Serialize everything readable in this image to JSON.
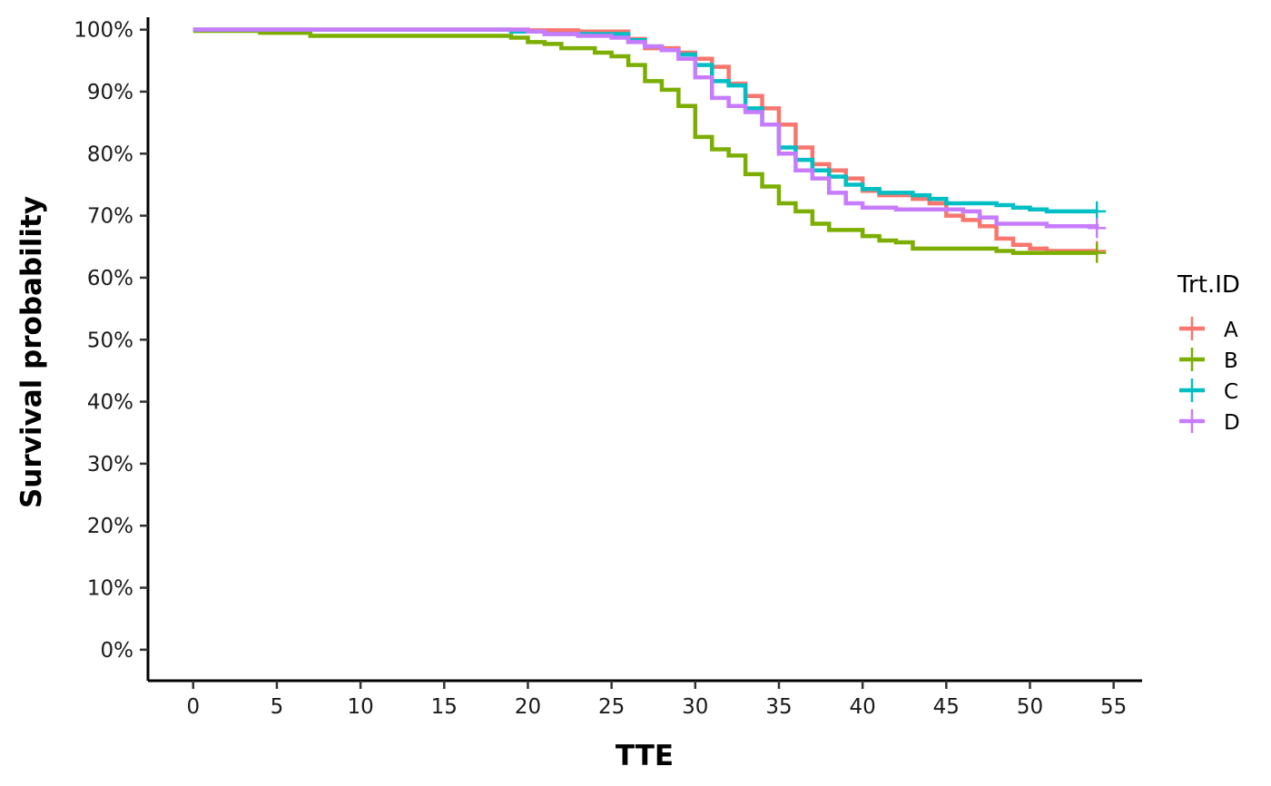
{
  "chart_data": {
    "type": "line",
    "subtype": "kaplan-meier-step",
    "title": "",
    "xlabel": "TTE",
    "ylabel": "Survival probability",
    "xlim": [
      -2.7,
      56.7
    ],
    "ylim": [
      -0.05,
      1.02
    ],
    "x_ticks": [
      0,
      5,
      10,
      15,
      20,
      25,
      30,
      35,
      40,
      45,
      50,
      55
    ],
    "x_tick_labels": [
      "0",
      "5",
      "10",
      "15",
      "20",
      "25",
      "30",
      "35",
      "40",
      "45",
      "50",
      "55"
    ],
    "y_ticks": [
      0,
      0.1,
      0.2,
      0.3,
      0.4,
      0.5,
      0.6,
      0.7,
      0.8,
      0.9,
      1.0
    ],
    "y_tick_labels": [
      "0%",
      "10%",
      "20%",
      "30%",
      "40%",
      "50%",
      "60%",
      "70%",
      "80%",
      "90%",
      "100%"
    ],
    "grid": false,
    "legend": {
      "title": "Trt.ID",
      "position": "right",
      "labels": [
        "A",
        "B",
        "C",
        "D"
      ]
    },
    "series": [
      {
        "name": "A",
        "color": "#F8766D",
        "x": [
          0,
          20,
          23,
          26,
          27,
          29,
          30,
          31,
          32,
          33,
          34,
          35,
          36,
          37,
          38,
          39,
          40,
          41,
          42,
          43,
          44,
          45,
          46,
          47,
          48,
          49,
          50,
          51,
          54
        ],
        "y": [
          1.0,
          0.999,
          0.997,
          0.985,
          0.97,
          0.963,
          0.953,
          0.94,
          0.913,
          0.893,
          0.873,
          0.847,
          0.81,
          0.783,
          0.773,
          0.76,
          0.74,
          0.733,
          0.733,
          0.727,
          0.72,
          0.7,
          0.693,
          0.683,
          0.663,
          0.653,
          0.647,
          0.643,
          0.643
        ]
      },
      {
        "name": "B",
        "color": "#7CAE00",
        "x": [
          0,
          4,
          7,
          19,
          20,
          21,
          22,
          24,
          25,
          26,
          27,
          28,
          29,
          30,
          31,
          32,
          33,
          34,
          35,
          36,
          37,
          38,
          40,
          41,
          42,
          43,
          44,
          48,
          49,
          54
        ],
        "y": [
          0.998,
          0.995,
          0.99,
          0.987,
          0.98,
          0.977,
          0.97,
          0.963,
          0.957,
          0.943,
          0.917,
          0.903,
          0.877,
          0.827,
          0.807,
          0.797,
          0.767,
          0.747,
          0.72,
          0.707,
          0.687,
          0.677,
          0.667,
          0.66,
          0.657,
          0.647,
          0.647,
          0.643,
          0.64,
          0.64
        ]
      },
      {
        "name": "C",
        "color": "#00BFC4",
        "x": [
          0,
          19,
          21,
          24,
          26,
          27,
          28,
          29,
          30,
          31,
          32,
          33,
          34,
          35,
          36,
          37,
          38,
          39,
          40,
          41,
          43,
          44,
          45,
          48,
          49,
          50,
          51,
          54
        ],
        "y": [
          1.0,
          0.997,
          0.993,
          0.993,
          0.983,
          0.973,
          0.967,
          0.96,
          0.943,
          0.917,
          0.91,
          0.873,
          0.847,
          0.81,
          0.79,
          0.773,
          0.763,
          0.75,
          0.743,
          0.737,
          0.733,
          0.727,
          0.72,
          0.717,
          0.713,
          0.71,
          0.707,
          0.707
        ]
      },
      {
        "name": "D",
        "color": "#C77CFF",
        "x": [
          0,
          20,
          21,
          22,
          23,
          25,
          26,
          27,
          28,
          29,
          30,
          31,
          32,
          33,
          34,
          35,
          36,
          37,
          38,
          39,
          40,
          42,
          44,
          46,
          47,
          48,
          50,
          51,
          54
        ],
        "y": [
          1.0,
          0.997,
          0.993,
          0.993,
          0.99,
          0.987,
          0.98,
          0.973,
          0.967,
          0.953,
          0.923,
          0.89,
          0.877,
          0.867,
          0.847,
          0.8,
          0.773,
          0.76,
          0.737,
          0.72,
          0.713,
          0.71,
          0.71,
          0.707,
          0.697,
          0.687,
          0.687,
          0.683,
          0.68
        ]
      }
    ]
  }
}
